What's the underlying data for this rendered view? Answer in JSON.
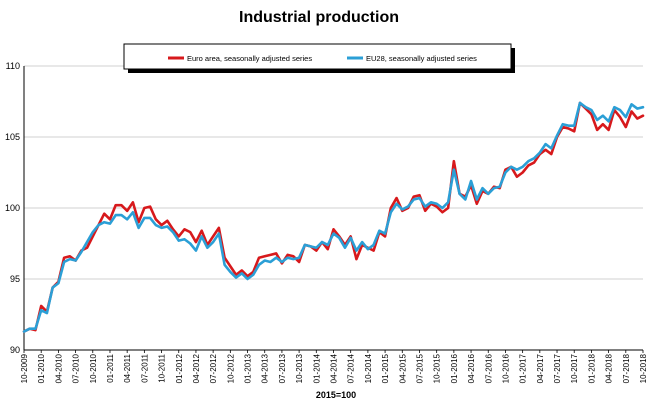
{
  "chart_data": {
    "type": "line",
    "title": "Industrial production",
    "xlabel": "2015=100",
    "ylabel": "",
    "ylim": [
      90,
      110
    ],
    "yticks": [
      90,
      95,
      100,
      105,
      110
    ],
    "grid": true,
    "legend": "top-center",
    "x_tick_labels": [
      "10-2009",
      "01-2010",
      "04-2010",
      "07-2010",
      "10-2010",
      "01-2011",
      "04-2011",
      "07-2011",
      "10-2011",
      "01-2012",
      "04-2012",
      "07-2012",
      "10-2012",
      "01-2013",
      "04-2013",
      "07-2013",
      "10-2013",
      "01-2014",
      "04-2014",
      "07-2014",
      "10-2014",
      "01-2015",
      "04-2015",
      "07-2015",
      "10-2015",
      "01-2016",
      "04-2016",
      "07-2016",
      "10-2016",
      "01-2017",
      "04-2017",
      "07-2017",
      "10-2017",
      "01-2018",
      "04-2018",
      "07-2018",
      "10-2018"
    ],
    "series": [
      {
        "name": "Euro area, seasonally adjusted series",
        "color": "#d7191c",
        "values": [
          91.3,
          91.5,
          91.4,
          93.1,
          92.7,
          94.4,
          94.8,
          96.5,
          96.6,
          96.3,
          97.0,
          97.2,
          98.0,
          98.8,
          99.6,
          99.2,
          100.2,
          100.2,
          99.8,
          100.4,
          99.0,
          100.0,
          100.1,
          99.2,
          98.8,
          99.1,
          98.5,
          98.0,
          98.5,
          98.3,
          97.6,
          98.4,
          97.4,
          98.0,
          98.6,
          96.5,
          95.9,
          95.3,
          95.6,
          95.2,
          95.5,
          96.5,
          96.6,
          96.7,
          96.8,
          96.1,
          96.7,
          96.6,
          96.2,
          97.4,
          97.3,
          97.0,
          97.6,
          97.1,
          98.5,
          98.0,
          97.4,
          98.0,
          96.4,
          97.4,
          97.2,
          97.0,
          98.3,
          98.0,
          100.0,
          100.7,
          99.8,
          100.0,
          100.8,
          100.9,
          99.8,
          100.3,
          100.1,
          99.7,
          100.0,
          103.3,
          101.0,
          100.8,
          101.6,
          100.3,
          101.2,
          101.0,
          101.5,
          101.4,
          102.7,
          102.9,
          102.2,
          102.5,
          103.0,
          103.2,
          103.8,
          104.1,
          103.8,
          105.0,
          105.7,
          105.6,
          105.4,
          107.4,
          107.0,
          106.6,
          105.5,
          105.9,
          105.5,
          106.9,
          106.4,
          105.7,
          106.8,
          106.3,
          106.5
        ]
      },
      {
        "name": "EU28, seasonally adjusted series",
        "color": "#2b9fd6",
        "values": [
          91.3,
          91.5,
          91.5,
          92.8,
          92.6,
          94.4,
          94.7,
          96.2,
          96.4,
          96.3,
          96.9,
          97.6,
          98.3,
          98.8,
          99.0,
          98.9,
          99.5,
          99.5,
          99.2,
          99.7,
          98.6,
          99.3,
          99.3,
          98.8,
          98.6,
          98.7,
          98.3,
          97.7,
          97.8,
          97.5,
          97.0,
          98.0,
          97.2,
          97.6,
          98.2,
          96.0,
          95.5,
          95.1,
          95.4,
          95.0,
          95.3,
          96.0,
          96.3,
          96.2,
          96.5,
          96.2,
          96.5,
          96.4,
          96.5,
          97.4,
          97.3,
          97.2,
          97.6,
          97.4,
          98.2,
          97.9,
          97.2,
          97.9,
          97.0,
          97.6,
          97.1,
          97.4,
          98.4,
          98.2,
          99.7,
          100.3,
          99.9,
          100.1,
          100.6,
          100.7,
          100.1,
          100.4,
          100.3,
          100.0,
          100.4,
          102.7,
          101.0,
          100.6,
          101.9,
          100.6,
          101.4,
          101.0,
          101.4,
          101.5,
          102.5,
          102.9,
          102.7,
          102.9,
          103.3,
          103.5,
          103.9,
          104.5,
          104.2,
          105.1,
          105.9,
          105.8,
          105.8,
          107.4,
          107.1,
          106.9,
          106.2,
          106.5,
          106.1,
          107.1,
          106.9,
          106.4,
          107.3,
          107.0,
          107.1
        ]
      }
    ]
  }
}
